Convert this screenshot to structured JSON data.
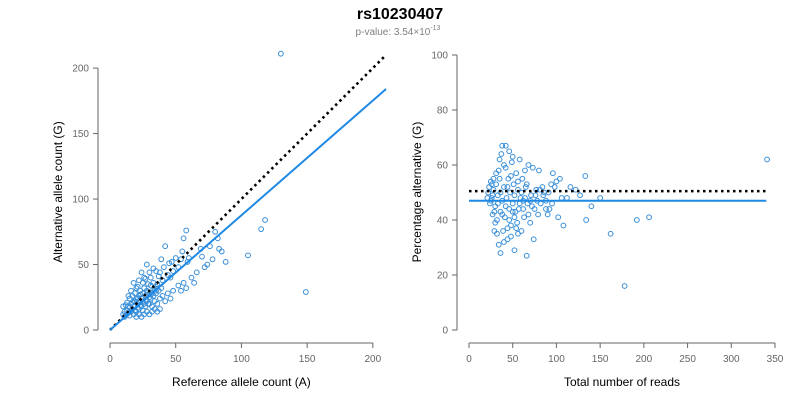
{
  "figure": {
    "title": "rs10230407",
    "subtitle_prefix": "p-value: 3.54×10",
    "subtitle_exponent": "-13"
  },
  "colors": {
    "point": "#3a8fd9",
    "fit_line": "#1e88e5",
    "reference_line": "#000000"
  },
  "chart_data": [
    {
      "type": "scatter",
      "title": "",
      "xlabel": "Reference allele count (A)",
      "ylabel": "Alternative allele count (G)",
      "xlim": [
        0,
        210
      ],
      "ylim": [
        0,
        210
      ],
      "xticks": [
        0,
        50,
        100,
        150,
        200
      ],
      "yticks": [
        0,
        50,
        100,
        150,
        200
      ],
      "grid": false,
      "lines": [
        {
          "style": "dotted",
          "color": "#000000",
          "x": [
            0,
            210
          ],
          "y": [
            0,
            210
          ]
        },
        {
          "style": "solid",
          "color": "#1e88e5",
          "x": [
            0,
            210
          ],
          "y": [
            0,
            184
          ]
        }
      ],
      "points": [
        [
          130,
          211
        ],
        [
          149,
          29
        ],
        [
          118,
          84
        ],
        [
          115,
          77
        ],
        [
          105,
          57
        ],
        [
          83,
          62
        ],
        [
          82,
          70
        ],
        [
          80,
          75
        ],
        [
          76,
          64
        ],
        [
          70,
          56
        ],
        [
          69,
          62
        ],
        [
          60,
          55
        ],
        [
          59,
          52
        ],
        [
          58,
          76
        ],
        [
          56,
          70
        ],
        [
          55,
          60
        ],
        [
          54,
          54
        ],
        [
          52,
          48
        ],
        [
          50,
          55
        ],
        [
          48,
          45
        ],
        [
          47,
          52
        ],
        [
          46,
          40
        ],
        [
          45,
          51
        ],
        [
          44,
          42
        ],
        [
          42,
          64
        ],
        [
          41,
          48
        ],
        [
          40,
          38
        ],
        [
          39,
          54
        ],
        [
          38,
          44
        ],
        [
          37,
          41
        ],
        [
          36,
          35
        ],
        [
          35,
          30
        ],
        [
          35,
          45
        ],
        [
          34,
          31
        ],
        [
          33,
          36
        ],
        [
          33,
          47
        ],
        [
          32,
          28
        ],
        [
          31,
          40
        ],
        [
          31,
          34
        ],
        [
          30,
          25
        ],
        [
          30,
          44
        ],
        [
          29,
          27
        ],
        [
          29,
          35
        ],
        [
          28,
          22
        ],
        [
          28,
          30
        ],
        [
          27,
          39
        ],
        [
          27,
          26
        ],
        [
          26,
          20
        ],
        [
          26,
          32
        ],
        [
          25,
          28
        ],
        [
          25,
          36
        ],
        [
          24,
          18
        ],
        [
          24,
          24
        ],
        [
          23,
          30
        ],
        [
          23,
          21
        ],
        [
          22,
          26
        ],
        [
          22,
          16
        ],
        [
          21,
          33
        ],
        [
          21,
          20
        ],
        [
          20,
          24
        ],
        [
          20,
          14
        ],
        [
          19,
          28
        ],
        [
          19,
          18
        ],
        [
          18,
          22
        ],
        [
          18,
          12
        ],
        [
          17,
          26
        ],
        [
          17,
          16
        ],
        [
          16,
          20
        ],
        [
          16,
          14
        ],
        [
          15,
          24
        ],
        [
          15,
          11
        ],
        [
          14,
          18
        ],
        [
          14,
          13
        ],
        [
          13,
          21
        ],
        [
          13,
          15
        ],
        [
          12,
          11
        ],
        [
          12,
          19
        ],
        [
          11,
          14
        ],
        [
          11,
          10
        ],
        [
          10,
          12
        ],
        [
          10,
          18
        ],
        [
          22,
          38
        ],
        [
          24,
          44
        ],
        [
          26,
          40
        ],
        [
          28,
          50
        ],
        [
          20,
          32
        ],
        [
          18,
          36
        ],
        [
          16,
          30
        ],
        [
          14,
          26
        ],
        [
          30,
          20
        ],
        [
          32,
          18
        ],
        [
          34,
          22
        ],
        [
          36,
          20
        ],
        [
          38,
          24
        ],
        [
          40,
          26
        ],
        [
          42,
          22
        ],
        [
          44,
          28
        ],
        [
          46,
          24
        ],
        [
          48,
          30
        ],
        [
          52,
          34
        ],
        [
          54,
          30
        ],
        [
          56,
          36
        ],
        [
          58,
          32
        ],
        [
          62,
          40
        ],
        [
          64,
          36
        ],
        [
          66,
          44
        ],
        [
          72,
          48
        ],
        [
          74,
          50
        ],
        [
          78,
          54
        ],
        [
          85,
          60
        ],
        [
          88,
          52
        ],
        [
          20,
          10
        ],
        [
          22,
          12
        ],
        [
          24,
          10
        ],
        [
          26,
          12
        ],
        [
          28,
          14
        ],
        [
          30,
          12
        ],
        [
          32,
          14
        ],
        [
          34,
          16
        ],
        [
          36,
          14
        ],
        [
          38,
          16
        ],
        [
          19,
          22
        ],
        [
          21,
          25
        ],
        [
          23,
          27
        ],
        [
          25,
          22
        ],
        [
          27,
          18
        ],
        [
          29,
          20
        ],
        [
          31,
          24
        ],
        [
          33,
          26
        ],
        [
          35,
          28
        ],
        [
          37,
          30
        ],
        [
          39,
          32
        ],
        [
          15,
          17
        ],
        [
          17,
          21
        ],
        [
          19,
          15
        ],
        [
          21,
          17
        ],
        [
          23,
          19
        ],
        [
          25,
          15
        ],
        [
          27,
          23
        ],
        [
          29,
          29
        ],
        [
          31,
          27
        ],
        [
          33,
          31
        ],
        [
          35,
          33
        ]
      ]
    },
    {
      "type": "scatter",
      "title": "",
      "xlabel": "Total number of reads",
      "ylabel": "Percentage alternative (G)",
      "xlim": [
        0,
        350
      ],
      "ylim": [
        0,
        100
      ],
      "xticks": [
        0,
        50,
        100,
        150,
        200,
        250,
        300,
        350
      ],
      "yticks": [
        0,
        20,
        40,
        60,
        80,
        100
      ],
      "grid": false,
      "lines": [
        {
          "style": "dotted",
          "color": "#000000",
          "x": [
            0,
            340
          ],
          "y": [
            50.5,
            50.5
          ]
        },
        {
          "style": "solid",
          "color": "#1e88e5",
          "x": [
            0,
            340
          ],
          "y": [
            47,
            47
          ]
        }
      ],
      "points": [
        [
          341,
          62
        ],
        [
          178,
          16
        ],
        [
          206,
          41
        ],
        [
          192,
          40
        ],
        [
          162,
          35
        ],
        [
          150,
          48
        ],
        [
          140,
          45
        ],
        [
          134,
          40
        ],
        [
          133,
          56
        ],
        [
          127,
          49
        ],
        [
          122,
          51
        ],
        [
          116,
          52
        ],
        [
          112,
          48
        ],
        [
          108,
          38
        ],
        [
          104,
          55
        ],
        [
          100,
          54
        ],
        [
          96,
          57
        ],
        [
          94,
          53
        ],
        [
          92,
          44
        ],
        [
          90,
          42
        ],
        [
          88,
          47
        ],
        [
          86,
          50
        ],
        [
          84,
          52
        ],
        [
          82,
          46
        ],
        [
          80,
          58
        ],
        [
          79,
          42
        ],
        [
          77,
          51
        ],
        [
          75,
          44
        ],
        [
          74,
          33
        ],
        [
          73,
          59
        ],
        [
          71,
          49
        ],
        [
          70,
          39
        ],
        [
          68,
          60
        ],
        [
          67,
          46
        ],
        [
          66,
          27
        ],
        [
          65,
          52
        ],
        [
          64,
          58
        ],
        [
          63,
          41
        ],
        [
          62,
          47
        ],
        [
          61,
          55
        ],
        [
          60,
          36
        ],
        [
          59,
          48
        ],
        [
          58,
          62
        ],
        [
          57,
          44
        ],
        [
          56,
          51
        ],
        [
          55,
          39
        ],
        [
          54,
          57
        ],
        [
          53,
          43
        ],
        [
          52,
          29
        ],
        [
          51,
          53
        ],
        [
          50,
          46
        ],
        [
          49,
          61
        ],
        [
          48,
          38
        ],
        [
          47,
          50
        ],
        [
          46,
          44
        ],
        [
          45,
          55
        ],
        [
          44,
          33
        ],
        [
          43,
          48
        ],
        [
          42,
          59
        ],
        [
          41,
          41
        ],
        [
          40,
          52
        ],
        [
          39,
          36
        ],
        [
          38,
          47
        ],
        [
          37,
          64
        ],
        [
          36,
          43
        ],
        [
          35,
          55
        ],
        [
          34,
          31
        ],
        [
          33,
          49
        ],
        [
          32,
          40
        ],
        [
          31,
          57
        ],
        [
          30,
          45
        ],
        [
          29,
          36
        ],
        [
          28,
          51
        ],
        [
          27,
          42
        ],
        [
          26,
          48
        ],
        [
          25,
          54
        ],
        [
          24,
          46
        ],
        [
          23,
          52
        ],
        [
          22,
          50
        ],
        [
          21,
          48
        ],
        [
          42,
          67
        ],
        [
          38,
          67
        ],
        [
          46,
          65
        ],
        [
          35,
          62
        ],
        [
          50,
          63
        ],
        [
          40,
          32
        ],
        [
          36,
          28
        ],
        [
          44,
          37
        ],
        [
          48,
          34
        ],
        [
          52,
          41
        ],
        [
          56,
          35
        ],
        [
          33,
          46
        ],
        [
          31,
          53
        ],
        [
          29,
          43
        ],
        [
          27,
          49
        ],
        [
          25,
          47
        ],
        [
          26,
          53
        ],
        [
          28,
          55
        ],
        [
          30,
          39
        ],
        [
          32,
          35
        ],
        [
          34,
          58
        ],
        [
          36,
          50
        ],
        [
          38,
          42
        ],
        [
          40,
          60
        ],
        [
          42,
          45
        ],
        [
          44,
          52
        ],
        [
          46,
          40
        ],
        [
          48,
          56
        ],
        [
          50,
          43
        ],
        [
          52,
          49
        ],
        [
          54,
          37
        ],
        [
          56,
          54
        ],
        [
          58,
          46
        ],
        [
          60,
          50
        ],
        [
          62,
          44
        ],
        [
          64,
          48
        ],
        [
          66,
          53
        ],
        [
          68,
          42
        ],
        [
          70,
          47
        ],
        [
          72,
          45
        ],
        [
          76,
          49
        ],
        [
          78,
          47
        ],
        [
          81,
          51
        ],
        [
          85,
          49
        ],
        [
          88,
          44
        ],
        [
          91,
          50
        ],
        [
          95,
          46
        ],
        [
          98,
          52
        ],
        [
          102,
          41
        ],
        [
          106,
          48
        ]
      ]
    }
  ]
}
